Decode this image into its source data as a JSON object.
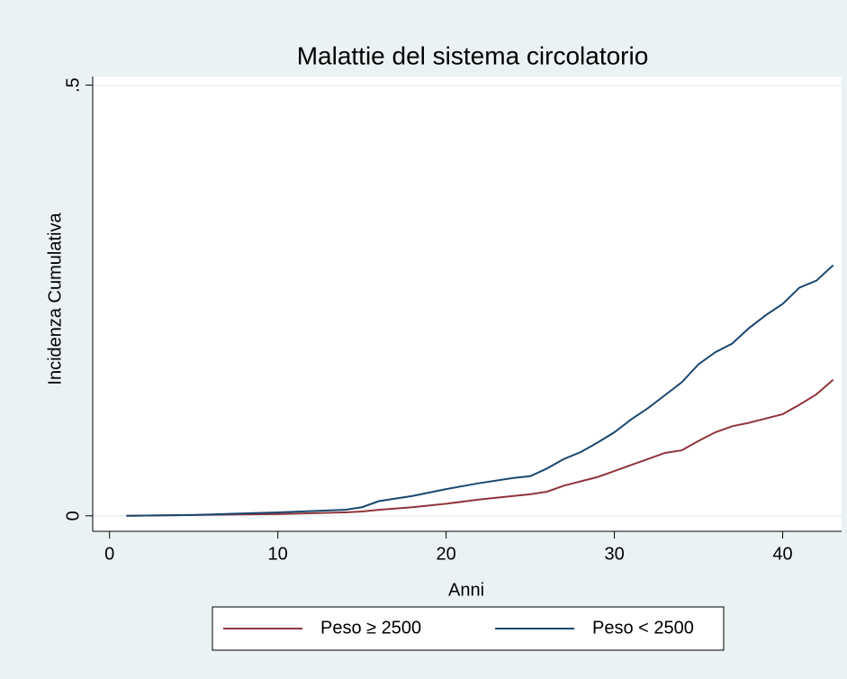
{
  "chart_data": {
    "type": "line",
    "title": "Malattie del sistema circolatorio",
    "x_label": "Anni",
    "y_label": "Incidenza Cumulativa",
    "x": [
      1,
      5,
      10,
      14,
      15,
      16,
      18,
      20,
      22,
      24,
      25,
      26,
      27,
      28,
      29,
      30,
      31,
      32,
      33,
      34,
      35,
      36,
      37,
      38,
      39,
      40,
      41,
      42,
      43
    ],
    "series": [
      {
        "name": "Peso ≥ 2500",
        "color": "#90353b",
        "values": [
          0,
          0.001,
          0.002,
          0.004,
          0.005,
          0.007,
          0.01,
          0.014,
          0.019,
          0.023,
          0.025,
          0.028,
          0.035,
          0.04,
          0.045,
          0.052,
          0.059,
          0.066,
          0.073,
          0.076,
          0.087,
          0.097,
          0.104,
          0.108,
          0.113,
          0.118,
          0.129,
          0.141,
          0.158
        ]
      },
      {
        "name": "Peso < 2500",
        "color": "#1a476f",
        "values": [
          0,
          0.001,
          0.004,
          0.007,
          0.01,
          0.017,
          0.023,
          0.031,
          0.038,
          0.044,
          0.046,
          0.055,
          0.066,
          0.074,
          0.085,
          0.097,
          0.112,
          0.125,
          0.14,
          0.155,
          0.176,
          0.19,
          0.2,
          0.218,
          0.233,
          0.246,
          0.265,
          0.273,
          0.291
        ]
      }
    ],
    "xlim": [
      -1,
      43.5
    ],
    "xticks": [
      0,
      10,
      20,
      30,
      40
    ],
    "ylim": [
      -0.018,
      0.51
    ],
    "yticks": [
      0,
      {
        "value": 0.5,
        "label": ".5"
      }
    ],
    "grid": true,
    "legend": "bottom"
  }
}
